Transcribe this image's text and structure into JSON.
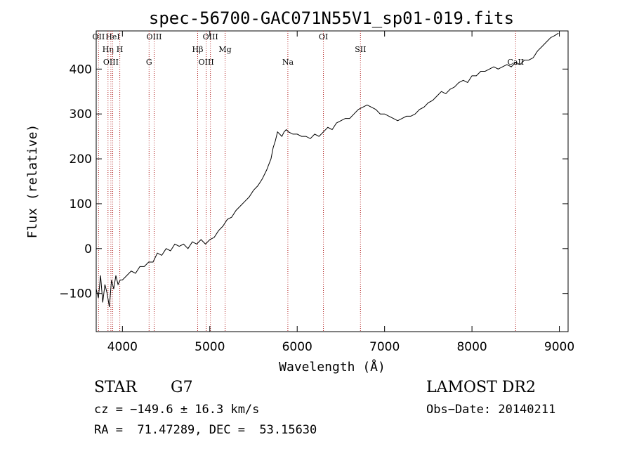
{
  "chart_data": {
    "type": "line",
    "title": "spec-56700-GAC071N55V1_sp01-019.fits",
    "xlabel": "Wavelength (Å)",
    "ylabel": "Flux (relative)",
    "xlim": [
      3700,
      9100
    ],
    "ylim": [
      -185,
      485
    ],
    "xticks": [
      4000,
      5000,
      6000,
      7000,
      8000,
      9000
    ],
    "yticks": [
      -100,
      0,
      100,
      200,
      300,
      400
    ],
    "xtick_labels": [
      "4000",
      "5000",
      "6000",
      "7000",
      "8000",
      "9000"
    ],
    "ytick_labels": [
      "−100",
      "0",
      "100",
      "200",
      "300",
      "400"
    ],
    "grid": false,
    "line_color": "#000000",
    "marker_color": "#b22222",
    "series": [
      {
        "x": [
          3700,
          3725,
          3750,
          3775,
          3800,
          3825,
          3850,
          3875,
          3900,
          3925,
          3950,
          3975,
          4000,
          4050,
          4100,
          4150,
          4200,
          4250,
          4300,
          4350,
          4400,
          4450,
          4500,
          4550,
          4600,
          4650,
          4700,
          4750,
          4800,
          4850,
          4900,
          4950,
          5000,
          5050,
          5100,
          5150,
          5200,
          5250,
          5300,
          5350,
          5400,
          5450,
          5500,
          5550,
          5600,
          5650,
          5700,
          5725,
          5750,
          5775,
          5800,
          5825,
          5850,
          5875,
          5900,
          5950,
          6000,
          6050,
          6100,
          6150,
          6200,
          6250,
          6300,
          6350,
          6400,
          6450,
          6500,
          6550,
          6600,
          6650,
          6700,
          6750,
          6800,
          6850,
          6900,
          6950,
          7000,
          7050,
          7100,
          7150,
          7200,
          7250,
          7300,
          7350,
          7400,
          7450,
          7500,
          7550,
          7600,
          7650,
          7700,
          7750,
          7800,
          7850,
          7900,
          7950,
          8000,
          8050,
          8100,
          8150,
          8200,
          8250,
          8300,
          8350,
          8400,
          8450,
          8500,
          8550,
          8600,
          8650,
          8700,
          8750,
          8800,
          8850,
          8900,
          8950,
          8990
        ],
        "values": [
          -90,
          -110,
          -60,
          -120,
          -80,
          -100,
          -130,
          -70,
          -90,
          -60,
          -80,
          -70,
          -70,
          -60,
          -50,
          -55,
          -40,
          -40,
          -30,
          -30,
          -10,
          -15,
          0,
          -5,
          10,
          5,
          10,
          0,
          15,
          10,
          20,
          10,
          20,
          25,
          40,
          50,
          65,
          70,
          85,
          95,
          105,
          115,
          130,
          140,
          155,
          175,
          200,
          225,
          240,
          260,
          255,
          250,
          260,
          265,
          260,
          255,
          255,
          250,
          250,
          245,
          255,
          250,
          260,
          270,
          265,
          280,
          285,
          290,
          290,
          300,
          310,
          315,
          320,
          315,
          310,
          300,
          300,
          295,
          290,
          285,
          290,
          295,
          295,
          300,
          310,
          315,
          325,
          330,
          340,
          350,
          345,
          355,
          360,
          370,
          375,
          370,
          385,
          385,
          395,
          395,
          400,
          405,
          400,
          405,
          410,
          405,
          415,
          410,
          420,
          420,
          425,
          440,
          450,
          460,
          470,
          475,
          480
        ]
      }
    ],
    "annotations": [
      {
        "label": "OII",
        "x": 3727
      },
      {
        "label": "Hη",
        "x": 3835
      },
      {
        "label": "OIII",
        "x": 3868
      },
      {
        "label": "HeI",
        "x": 3889
      },
      {
        "label": "H",
        "x": 3970
      },
      {
        "label": "G",
        "x": 4305
      },
      {
        "label": "OIII",
        "x": 4363
      },
      {
        "label": "Hβ",
        "x": 4861
      },
      {
        "label": "OIII",
        "x": 4959
      },
      {
        "label": "OIII",
        "x": 5007
      },
      {
        "label": "Mg",
        "x": 5175
      },
      {
        "label": "Na",
        "x": 5893
      },
      {
        "label": "OI",
        "x": 6300
      },
      {
        "label": "SII",
        "x": 6724
      },
      {
        "label": "CaII",
        "x": 8500
      }
    ]
  },
  "info": {
    "obj_class": "STAR",
    "subclass": "G7",
    "survey": "LAMOST DR2",
    "cz": "cz = −149.6 ± 16.3 km/s",
    "obs_date": "Obs−Date: 20140211",
    "radec": "RA =  71.47289, DEC =  53.15630"
  }
}
